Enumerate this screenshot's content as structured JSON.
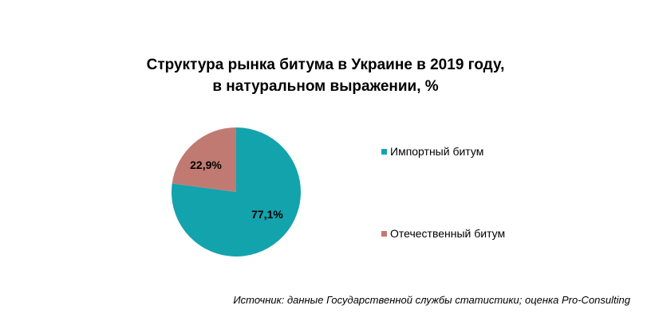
{
  "title_line1": "Структура рынка битума в Украине в 2019 году,",
  "title_line2": "в натуральном выражении, %",
  "source": "Источник: данные Государственной службы статистики; оценка Pro-Consulting",
  "chart_data": {
    "type": "pie",
    "title": "Структура рынка битума в Украине в 2019 году, в натуральном выражении, %",
    "unit": "%",
    "legend_position": "right",
    "slices": [
      {
        "label": "Импортный битум",
        "value": 77.1,
        "display": "77,1%",
        "color": "#13a3ad"
      },
      {
        "label": "Отечественный битум",
        "value": 22.9,
        "display": "22,9%",
        "color": "#c07a72"
      }
    ]
  }
}
